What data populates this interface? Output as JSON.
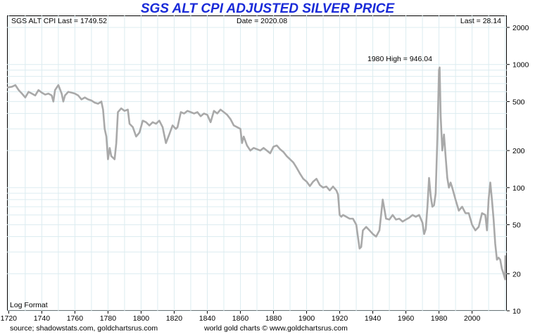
{
  "chart_data": {
    "type": "line",
    "title": "SGS ALT CPI ADJUSTED SILVER PRICE",
    "header_left": "SGS ALT CPI Last = 1749.52",
    "header_center": "Date = 2020.08",
    "header_right": "Last = 28.14",
    "annotation": "1980 High = 946.04",
    "scale_note": "Log Format",
    "source_left": "source; shadowstats.com, goldchartsrus.com",
    "source_center": "world gold charts © www.goldchartsrus.com",
    "y_scale": "log",
    "ylim": [
      10,
      2500
    ],
    "xlim": [
      1719,
      2021
    ],
    "x_ticks": [
      1720,
      1740,
      1760,
      1780,
      1800,
      1820,
      1840,
      1860,
      1880,
      1900,
      1920,
      1940,
      1960,
      1980,
      2000
    ],
    "y_ticks": [
      10,
      20,
      50,
      100,
      200,
      500,
      1000,
      2000
    ],
    "grid": true,
    "line_color": "#a9a9a9",
    "title_color": "#1a2bd8",
    "series": [
      {
        "points": [
          [
            1719,
            650
          ],
          [
            1722,
            660
          ],
          [
            1724,
            680
          ],
          [
            1726,
            620
          ],
          [
            1728,
            580
          ],
          [
            1730,
            540
          ],
          [
            1732,
            600
          ],
          [
            1734,
            580
          ],
          [
            1736,
            560
          ],
          [
            1738,
            620
          ],
          [
            1740,
            590
          ],
          [
            1742,
            570
          ],
          [
            1744,
            580
          ],
          [
            1746,
            560
          ],
          [
            1747,
            500
          ],
          [
            1748,
            620
          ],
          [
            1750,
            680
          ],
          [
            1752,
            580
          ],
          [
            1753,
            500
          ],
          [
            1754,
            560
          ],
          [
            1756,
            600
          ],
          [
            1758,
            590
          ],
          [
            1760,
            580
          ],
          [
            1762,
            560
          ],
          [
            1764,
            520
          ],
          [
            1766,
            540
          ],
          [
            1768,
            520
          ],
          [
            1770,
            510
          ],
          [
            1772,
            490
          ],
          [
            1774,
            480
          ],
          [
            1776,
            500
          ],
          [
            1777,
            430
          ],
          [
            1778,
            300
          ],
          [
            1779,
            260
          ],
          [
            1780,
            170
          ],
          [
            1781,
            210
          ],
          [
            1782,
            180
          ],
          [
            1784,
            170
          ],
          [
            1785,
            230
          ],
          [
            1786,
            410
          ],
          [
            1788,
            440
          ],
          [
            1790,
            420
          ],
          [
            1792,
            430
          ],
          [
            1793,
            330
          ],
          [
            1795,
            310
          ],
          [
            1797,
            260
          ],
          [
            1799,
            280
          ],
          [
            1801,
            350
          ],
          [
            1803,
            340
          ],
          [
            1805,
            320
          ],
          [
            1807,
            340
          ],
          [
            1809,
            330
          ],
          [
            1811,
            350
          ],
          [
            1813,
            310
          ],
          [
            1815,
            230
          ],
          [
            1817,
            270
          ],
          [
            1819,
            320
          ],
          [
            1821,
            300
          ],
          [
            1822,
            310
          ],
          [
            1824,
            410
          ],
          [
            1826,
            400
          ],
          [
            1828,
            420
          ],
          [
            1830,
            410
          ],
          [
            1832,
            400
          ],
          [
            1834,
            410
          ],
          [
            1836,
            380
          ],
          [
            1838,
            400
          ],
          [
            1840,
            390
          ],
          [
            1842,
            340
          ],
          [
            1844,
            420
          ],
          [
            1846,
            400
          ],
          [
            1848,
            430
          ],
          [
            1850,
            410
          ],
          [
            1852,
            390
          ],
          [
            1854,
            360
          ],
          [
            1856,
            320
          ],
          [
            1858,
            310
          ],
          [
            1860,
            300
          ],
          [
            1861,
            230
          ],
          [
            1862,
            260
          ],
          [
            1864,
            220
          ],
          [
            1866,
            200
          ],
          [
            1868,
            210
          ],
          [
            1870,
            205
          ],
          [
            1872,
            200
          ],
          [
            1874,
            210
          ],
          [
            1876,
            200
          ],
          [
            1878,
            190
          ],
          [
            1880,
            215
          ],
          [
            1882,
            220
          ],
          [
            1884,
            205
          ],
          [
            1886,
            195
          ],
          [
            1888,
            180
          ],
          [
            1890,
            170
          ],
          [
            1892,
            160
          ],
          [
            1894,
            145
          ],
          [
            1896,
            130
          ],
          [
            1898,
            118
          ],
          [
            1900,
            112
          ],
          [
            1902,
            103
          ],
          [
            1904,
            112
          ],
          [
            1906,
            118
          ],
          [
            1908,
            105
          ],
          [
            1910,
            100
          ],
          [
            1912,
            102
          ],
          [
            1914,
            95
          ],
          [
            1916,
            102
          ],
          [
            1918,
            95
          ],
          [
            1919,
            88
          ],
          [
            1920,
            60
          ],
          [
            1921,
            58
          ],
          [
            1922,
            60
          ],
          [
            1924,
            58
          ],
          [
            1926,
            56
          ],
          [
            1928,
            56
          ],
          [
            1930,
            50
          ],
          [
            1931,
            40
          ],
          [
            1932,
            32
          ],
          [
            1933,
            33
          ],
          [
            1934,
            45
          ],
          [
            1936,
            48
          ],
          [
            1938,
            45
          ],
          [
            1940,
            42
          ],
          [
            1942,
            40
          ],
          [
            1944,
            45
          ],
          [
            1946,
            80
          ],
          [
            1948,
            56
          ],
          [
            1950,
            55
          ],
          [
            1952,
            60
          ],
          [
            1954,
            55
          ],
          [
            1956,
            56
          ],
          [
            1958,
            53
          ],
          [
            1960,
            55
          ],
          [
            1962,
            57
          ],
          [
            1964,
            60
          ],
          [
            1966,
            58
          ],
          [
            1968,
            60
          ],
          [
            1970,
            52
          ],
          [
            1971,
            42
          ],
          [
            1972,
            46
          ],
          [
            1973,
            70
          ],
          [
            1974,
            120
          ],
          [
            1975,
            85
          ],
          [
            1976,
            70
          ],
          [
            1977,
            72
          ],
          [
            1978,
            90
          ],
          [
            1979,
            250
          ],
          [
            1980,
            900
          ],
          [
            1980.4,
            946
          ],
          [
            1981,
            380
          ],
          [
            1982,
            200
          ],
          [
            1983,
            270
          ],
          [
            1984,
            180
          ],
          [
            1985,
            120
          ],
          [
            1986,
            100
          ],
          [
            1987,
            110
          ],
          [
            1988,
            100
          ],
          [
            1990,
            80
          ],
          [
            1992,
            65
          ],
          [
            1994,
            70
          ],
          [
            1996,
            62
          ],
          [
            1998,
            62
          ],
          [
            2000,
            50
          ],
          [
            2002,
            45
          ],
          [
            2004,
            48
          ],
          [
            2006,
            62
          ],
          [
            2008,
            60
          ],
          [
            2009,
            45
          ],
          [
            2010,
            80
          ],
          [
            2011,
            110
          ],
          [
            2012,
            80
          ],
          [
            2013,
            55
          ],
          [
            2014,
            35
          ],
          [
            2015,
            26
          ],
          [
            2016,
            27
          ],
          [
            2017,
            26
          ],
          [
            2018,
            22
          ],
          [
            2019,
            20
          ],
          [
            2020,
            18
          ],
          [
            2020.08,
            28.14
          ]
        ]
      }
    ]
  }
}
